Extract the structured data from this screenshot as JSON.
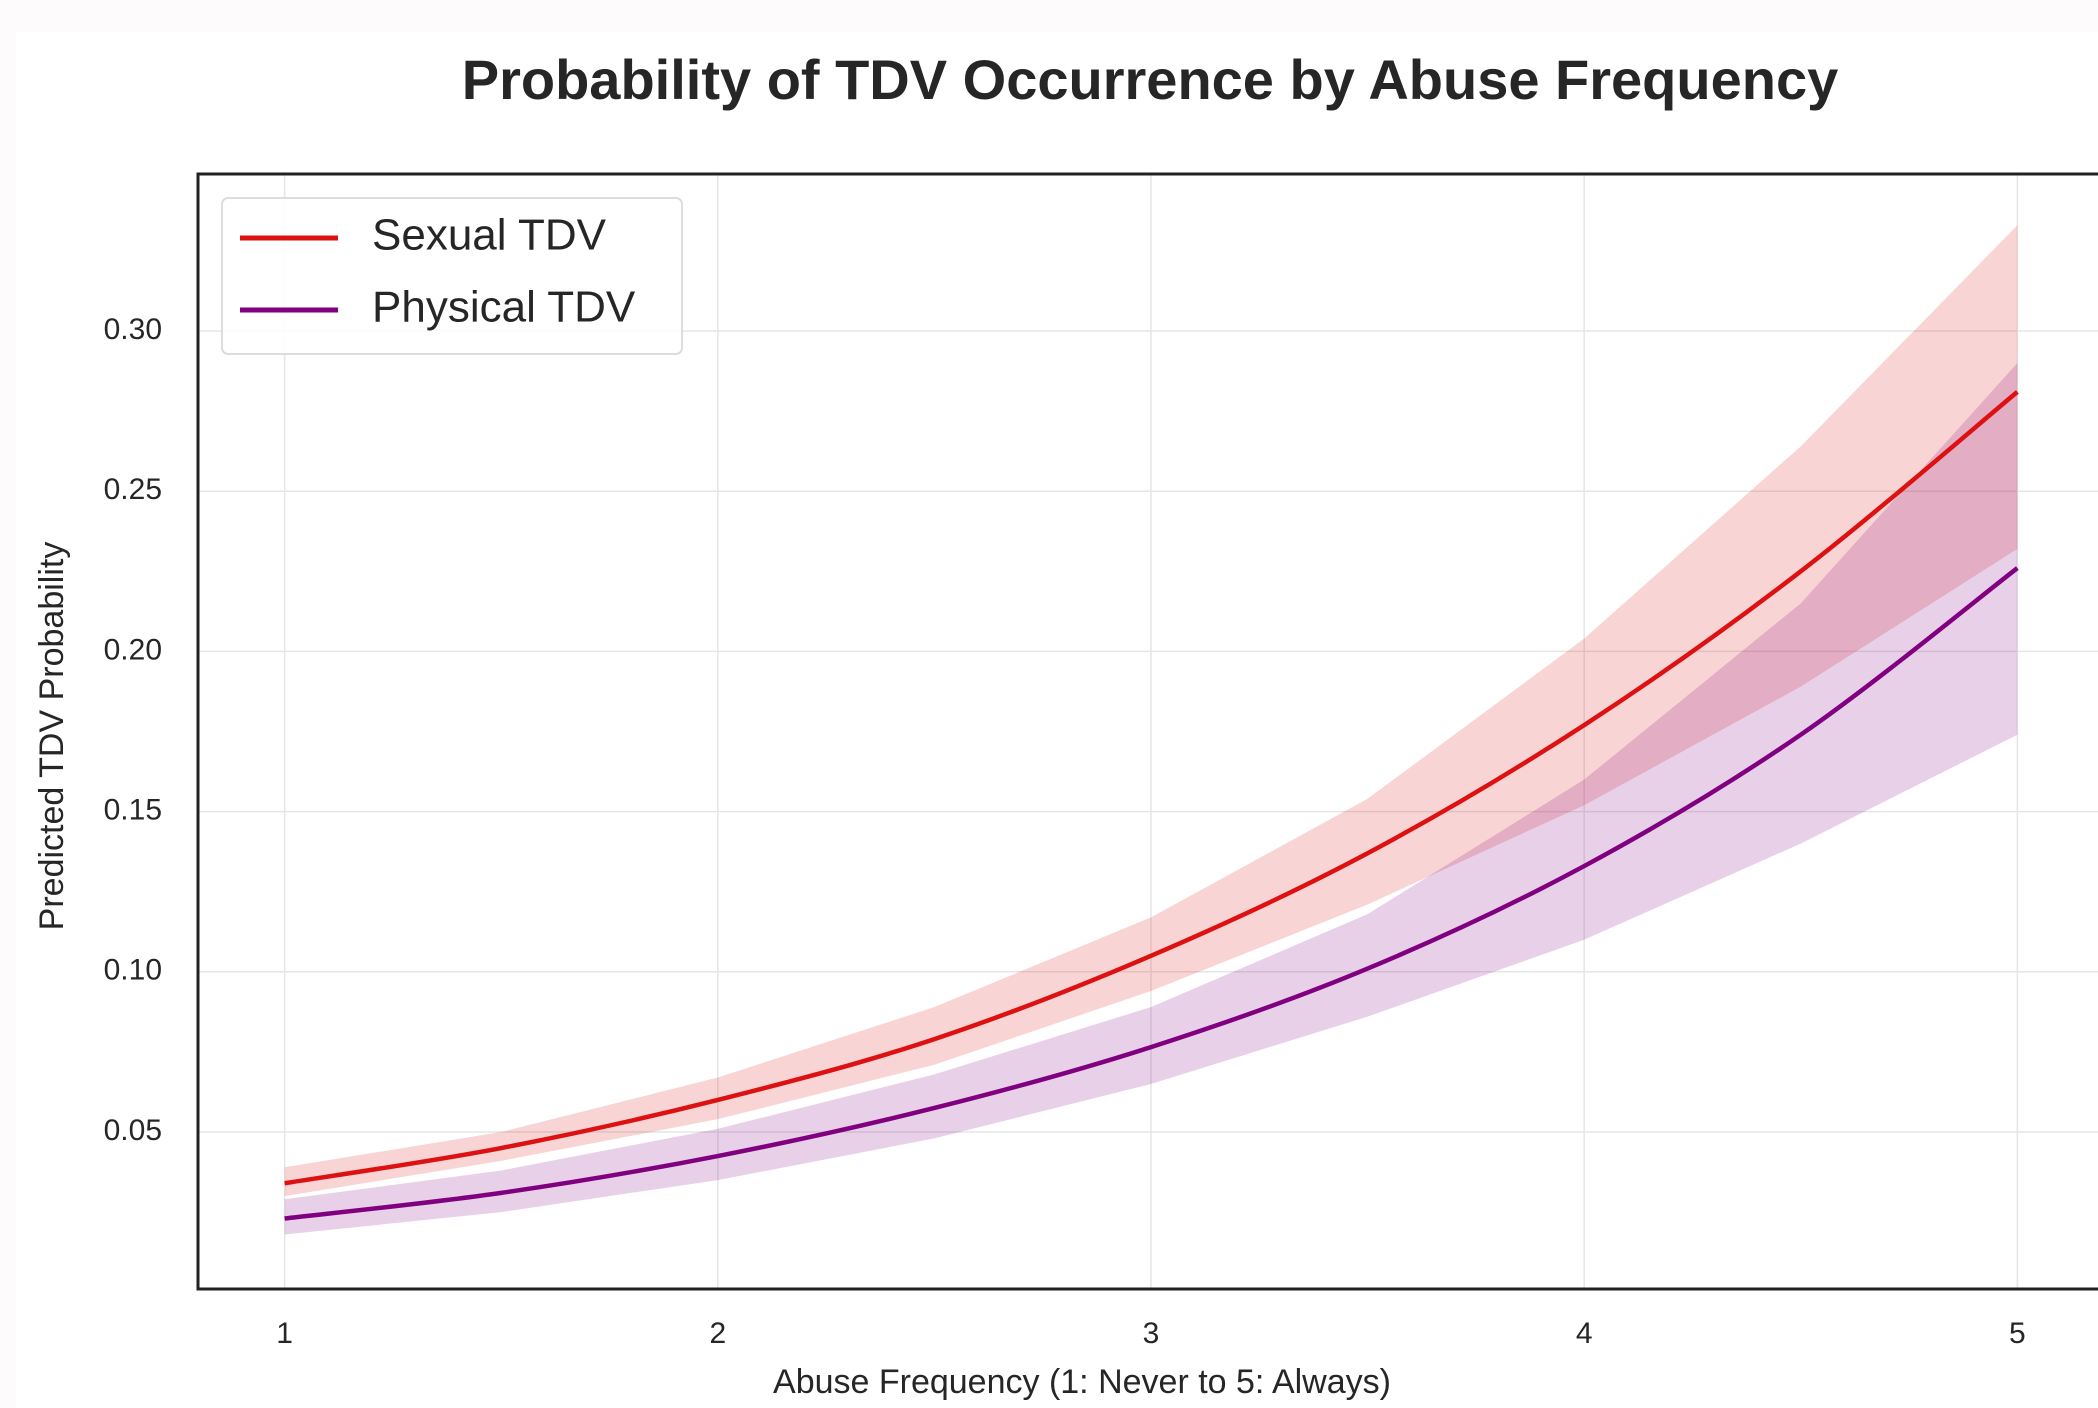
{
  "chart_data": {
    "type": "line",
    "title": "Probability of TDV Occurrence by Abuse Frequency",
    "xlabel": "Abuse Frequency (1: Never to 5: Always)",
    "ylabel": "Predicted TDV Probability",
    "x": [
      1,
      1.5,
      2,
      2.5,
      3,
      3.5,
      4,
      4.5,
      5
    ],
    "series": [
      {
        "name": "Sexual TDV",
        "color": "#dd1111",
        "values": [
          0.034,
          0.045,
          0.06,
          0.079,
          0.105,
          0.137,
          0.177,
          0.225,
          0.281
        ],
        "lower": [
          0.03,
          0.041,
          0.054,
          0.071,
          0.094,
          0.121,
          0.152,
          0.189,
          0.232
        ],
        "upper": [
          0.039,
          0.05,
          0.067,
          0.089,
          0.117,
          0.154,
          0.204,
          0.264,
          0.333
        ]
      },
      {
        "name": "Physical TDV",
        "color": "#800080",
        "values": [
          0.023,
          0.031,
          0.0425,
          0.0575,
          0.0765,
          0.101,
          0.133,
          0.174,
          0.226
        ],
        "lower": [
          0.018,
          0.025,
          0.035,
          0.048,
          0.065,
          0.086,
          0.11,
          0.14,
          0.174
        ],
        "upper": [
          0.029,
          0.038,
          0.051,
          0.068,
          0.089,
          0.118,
          0.16,
          0.215,
          0.29
        ]
      }
    ],
    "band_alpha": 0.18,
    "xlim": [
      0.8,
      5.2
    ],
    "ylim": [
      0.001,
      0.349
    ],
    "xticks": [
      1,
      2,
      3,
      4,
      5
    ],
    "yticks": [
      0.05,
      0.1,
      0.15,
      0.2,
      0.25,
      0.3
    ],
    "yticks_labels": null,
    "grid": true,
    "legend": "upper left"
  }
}
